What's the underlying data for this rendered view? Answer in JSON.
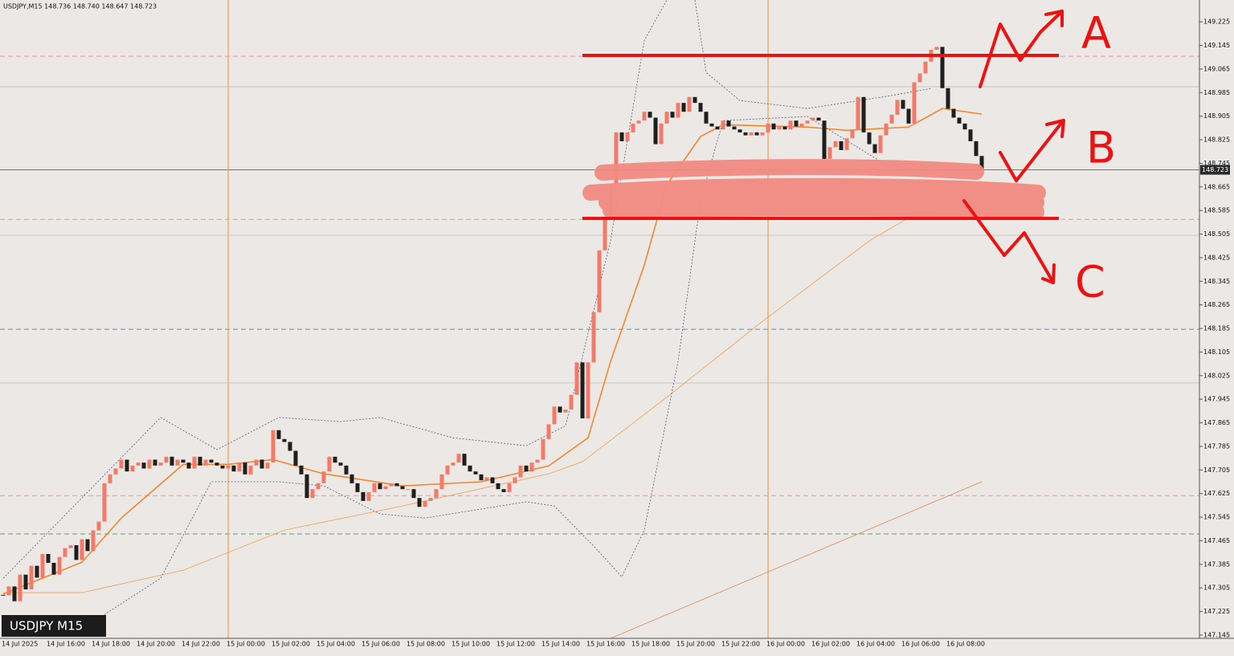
{
  "chart_data": {
    "type": "candlestick",
    "title": "USDJPY M15",
    "header": "USDJPY,M15  148.736 148.740 148.647 148.723",
    "last_price": 148.723,
    "ylim": [
      147.134,
      149.299
    ],
    "yticks": [
      149.225,
      149.145,
      149.065,
      148.985,
      148.905,
      148.825,
      148.745,
      148.665,
      148.585,
      148.505,
      148.425,
      148.345,
      148.265,
      148.185,
      148.105,
      148.025,
      147.945,
      147.865,
      147.785,
      147.705,
      147.625,
      147.545,
      147.465,
      147.385,
      147.305,
      147.225,
      147.145
    ],
    "up_color": "#f37a68",
    "down_color": "#1e1e1e",
    "categories": [
      "14 Jul 2025",
      null,
      null,
      null,
      null,
      null,
      null,
      null,
      "14 Jul 16:00",
      null,
      null,
      null,
      null,
      null,
      null,
      null,
      "14 Jul 18:00",
      null,
      null,
      null,
      null,
      null,
      null,
      null,
      "14 Jul 20:00",
      null,
      null,
      null,
      null,
      null,
      null,
      null,
      "14 Jul 22:00",
      null,
      null,
      null,
      null,
      null,
      null,
      null,
      "15 Jul 00:00",
      null,
      null,
      null,
      null,
      null,
      null,
      null,
      "15 Jul 02:00",
      null,
      null,
      null,
      null,
      null,
      null,
      null,
      "15 Jul 04:00",
      null,
      null,
      null,
      null,
      null,
      null,
      null,
      "15 Jul 06:00",
      null,
      null,
      null,
      null,
      null,
      null,
      null,
      "15 Jul 08:00",
      null,
      null,
      null,
      null,
      null,
      null,
      null,
      "15 Jul 10:00",
      null,
      null,
      null,
      null,
      null,
      null,
      null,
      "15 Jul 12:00",
      null,
      null,
      null,
      null,
      null,
      null,
      null,
      "15 Jul 14:00",
      null,
      null,
      null,
      null,
      null,
      null,
      null,
      "15 Jul 16:00",
      null,
      null,
      null,
      null,
      null,
      null,
      null,
      "15 Jul 18:00",
      null,
      null,
      null,
      null,
      null,
      null,
      null,
      "15 Jul 20:00",
      null,
      null,
      null,
      null,
      null,
      null,
      null,
      "15 Jul 22:00",
      null,
      null,
      null,
      null,
      null,
      null,
      null,
      "16 Jul 00:00",
      null,
      null,
      null,
      null,
      null,
      null,
      null,
      "16 Jul 02:00",
      null,
      null,
      null,
      null,
      null,
      null,
      null,
      "16 Jul 04:00",
      null,
      null,
      null,
      null,
      null,
      null,
      null,
      "16 Jul 06:00",
      null,
      null,
      null,
      null,
      null,
      null,
      null,
      "16 Jul 08:00",
      null,
      null,
      null,
      null,
      null,
      null
    ],
    "close": [
      147.28,
      147.31,
      147.26,
      147.35,
      147.3,
      147.38,
      147.34,
      147.42,
      147.39,
      147.35,
      147.41,
      147.44,
      147.45,
      147.4,
      147.47,
      147.43,
      147.5,
      147.53,
      147.66,
      147.69,
      147.71,
      147.74,
      147.7,
      147.72,
      147.73,
      147.71,
      147.74,
      147.72,
      147.73,
      147.75,
      147.72,
      147.74,
      147.73,
      147.71,
      147.75,
      147.72,
      147.74,
      147.73,
      147.72,
      147.71,
      147.72,
      147.7,
      147.73,
      147.69,
      147.72,
      147.74,
      147.71,
      147.73,
      147.84,
      147.81,
      147.8,
      147.77,
      147.72,
      147.69,
      147.61,
      147.64,
      147.66,
      147.7,
      147.75,
      147.73,
      147.72,
      147.69,
      147.66,
      147.63,
      147.6,
      147.63,
      147.66,
      147.64,
      147.65,
      147.66,
      147.65,
      147.64,
      147.64,
      147.61,
      147.58,
      147.6,
      147.61,
      147.64,
      147.69,
      147.72,
      147.73,
      147.76,
      147.72,
      147.7,
      147.69,
      147.67,
      147.68,
      147.66,
      147.64,
      147.63,
      147.66,
      147.68,
      147.72,
      147.7,
      147.73,
      147.74,
      147.81,
      147.86,
      147.92,
      147.9,
      147.91,
      147.96,
      148.07,
      147.88,
      148.07,
      148.24,
      148.45,
      148.56,
      148.67,
      148.85,
      148.82,
      148.85,
      148.88,
      148.89,
      148.92,
      148.9,
      148.81,
      148.88,
      148.92,
      148.9,
      148.95,
      148.92,
      148.97,
      148.95,
      148.92,
      148.88,
      148.87,
      148.86,
      148.89,
      148.87,
      148.86,
      148.85,
      148.84,
      148.85,
      148.84,
      148.85,
      148.88,
      148.86,
      148.87,
      148.86,
      148.89,
      148.87,
      148.88,
      148.89,
      148.9,
      148.89,
      148.76,
      148.8,
      148.82,
      148.79,
      148.83,
      148.86,
      148.97,
      148.85,
      148.81,
      148.78,
      148.84,
      148.88,
      148.91,
      148.96,
      148.93,
      148.88,
      149.02,
      149.05,
      149.09,
      149.13,
      149.14,
      149.0,
      148.93,
      148.9,
      148.88,
      148.86,
      148.82,
      148.77,
      148.723
    ],
    "series": [
      {
        "color": "#f5872d",
        "width": 1.6,
        "style": "solid",
        "x": [
          0,
          14,
          21,
          32,
          40,
          48,
          57,
          71,
          85,
          97,
          104,
          108,
          114,
          118,
          124,
          128,
          143,
          150,
          161,
          167,
          174
        ],
        "values": [
          147.284,
          147.392,
          147.542,
          147.724,
          147.724,
          147.74,
          147.692,
          147.651,
          147.665,
          147.719,
          147.814,
          148.073,
          148.4,
          148.672,
          148.836,
          148.876,
          148.868,
          148.857,
          148.868,
          148.931,
          148.912
        ]
      },
      {
        "color": "#f5a04a",
        "width": 0.8,
        "style": "solid",
        "x": [
          0,
          14,
          32,
          50,
          71,
          97,
          103,
          117,
          135,
          154,
          171
        ],
        "values": [
          147.289,
          147.289,
          147.365,
          147.501,
          147.583,
          147.692,
          147.733,
          147.937,
          148.209,
          148.482,
          148.672
        ]
      },
      {
        "color": "#e08a50",
        "width": 0.8,
        "style": "solid",
        "x": [
          108,
          174
        ],
        "values": [
          147.134,
          147.665
        ]
      },
      {
        "color": "#555a80",
        "width": 0.8,
        "style": "dotted",
        "x": [
          0,
          28,
          38,
          49,
          60,
          67,
          80,
          93,
          100,
          108,
          114,
          118
        ],
        "values": [
          147.338,
          147.883,
          147.774,
          147.883,
          147.869,
          147.883,
          147.814,
          147.787,
          147.855,
          148.482,
          149.162,
          149.299
        ]
      },
      {
        "color": "#555a80",
        "width": 0.8,
        "style": "dotted",
        "x": [
          123,
          125,
          131,
          143,
          157,
          165
        ],
        "values": [
          149.299,
          149.053,
          148.958,
          148.931,
          148.972,
          148.999
        ]
      },
      {
        "color": "#555a80",
        "width": 0.8,
        "style": "dotted",
        "x": [
          17,
          28,
          37,
          49,
          57,
          67,
          75,
          93,
          98,
          105,
          110,
          114,
          120,
          124,
          128,
          143,
          157,
          165
        ],
        "values": [
          147.202,
          147.338,
          147.665,
          147.665,
          147.651,
          147.556,
          147.542,
          147.597,
          147.583,
          147.447,
          147.343,
          147.501,
          148.073,
          148.618,
          148.89,
          148.904,
          148.74,
          148.713
        ]
      }
    ],
    "levels": [
      {
        "value": 149.108,
        "color": "#f08fb0",
        "style": "dashed"
      },
      {
        "value": 149.005,
        "color": "#c4c4c4",
        "style": "solid"
      },
      {
        "value": 148.723,
        "color": "#777777",
        "style": "solid"
      },
      {
        "value": 148.555,
        "color": "#f5a04a",
        "style": "dashed"
      },
      {
        "value": 148.501,
        "color": "#c8c8c8",
        "style": "solid"
      },
      {
        "value": 148.182,
        "color": "#6b8fc0",
        "style": "dashed"
      },
      {
        "value": 148.0,
        "color": "#c8c8c8",
        "style": "solid"
      },
      {
        "value": 147.618,
        "color": "#f08fb0",
        "style": "dashed"
      },
      {
        "value": 147.488,
        "color": "#5aa06a",
        "style": "dashed"
      }
    ],
    "separators": [
      40,
      136
    ],
    "separator_color": "#f5a04a",
    "annotations": [
      "A",
      "B",
      "C"
    ]
  }
}
